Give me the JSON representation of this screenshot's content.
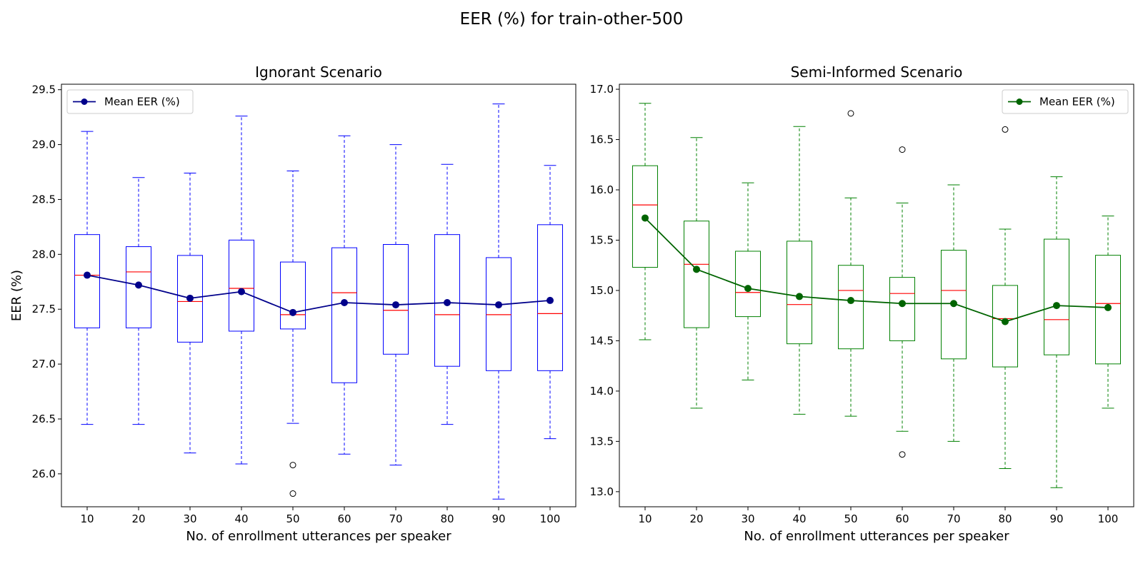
{
  "figure_title": "EER (%) for train-other-500",
  "chart_data": [
    {
      "type": "box",
      "title": "Ignorant Scenario",
      "xlabel": "No. of enrollment utterances per speaker",
      "ylabel": "EER (%)",
      "categories": [
        "10",
        "20",
        "30",
        "40",
        "50",
        "60",
        "70",
        "80",
        "90",
        "100"
      ],
      "ylim": [
        25.7,
        29.55
      ],
      "yticks": [
        "26.0",
        "26.5",
        "27.0",
        "27.5",
        "28.0",
        "28.5",
        "29.0",
        "29.5"
      ],
      "box_color": "#0000ff",
      "median_color": "#ff0000",
      "boxes": [
        {
          "whislo": 26.45,
          "q1": 27.33,
          "med": 27.81,
          "q3": 28.18,
          "whishi": 29.12,
          "fliers": []
        },
        {
          "whislo": 26.45,
          "q1": 27.33,
          "med": 27.84,
          "q3": 28.07,
          "whishi": 28.7,
          "fliers": []
        },
        {
          "whislo": 26.19,
          "q1": 27.2,
          "med": 27.57,
          "q3": 27.99,
          "whishi": 28.74,
          "fliers": []
        },
        {
          "whislo": 26.09,
          "q1": 27.3,
          "med": 27.69,
          "q3": 28.13,
          "whishi": 29.26,
          "fliers": []
        },
        {
          "whislo": 26.46,
          "q1": 27.32,
          "med": 27.45,
          "q3": 27.93,
          "whishi": 28.76,
          "fliers": [
            26.08,
            25.82
          ]
        },
        {
          "whislo": 26.18,
          "q1": 26.83,
          "med": 27.65,
          "q3": 28.06,
          "whishi": 29.08,
          "fliers": []
        },
        {
          "whislo": 26.08,
          "q1": 27.09,
          "med": 27.49,
          "q3": 28.09,
          "whishi": 29.0,
          "fliers": []
        },
        {
          "whislo": 26.45,
          "q1": 26.98,
          "med": 27.45,
          "q3": 28.18,
          "whishi": 28.82,
          "fliers": []
        },
        {
          "whislo": 25.77,
          "q1": 26.94,
          "med": 27.45,
          "q3": 27.97,
          "whishi": 29.37,
          "fliers": []
        },
        {
          "whislo": 26.32,
          "q1": 26.94,
          "med": 27.46,
          "q3": 28.27,
          "whishi": 28.81,
          "fliers": []
        }
      ],
      "mean_series": {
        "name": "Mean EER (%)",
        "color": "#00008b",
        "values": [
          27.81,
          27.72,
          27.6,
          27.66,
          27.47,
          27.56,
          27.54,
          27.56,
          27.54,
          27.58
        ]
      },
      "legend_position": "upper-left"
    },
    {
      "type": "box",
      "title": "Semi-Informed Scenario",
      "xlabel": "No. of enrollment utterances per speaker",
      "ylabel": "",
      "categories": [
        "10",
        "20",
        "30",
        "40",
        "50",
        "60",
        "70",
        "80",
        "90",
        "100"
      ],
      "ylim": [
        12.85,
        17.05
      ],
      "yticks": [
        "13.0",
        "13.5",
        "14.0",
        "14.5",
        "15.0",
        "15.5",
        "16.0",
        "16.5",
        "17.0"
      ],
      "box_color": "#008000",
      "median_color": "#ff0000",
      "boxes": [
        {
          "whislo": 14.51,
          "q1": 15.23,
          "med": 15.85,
          "q3": 16.24,
          "whishi": 16.86,
          "fliers": []
        },
        {
          "whislo": 13.83,
          "q1": 14.63,
          "med": 15.26,
          "q3": 15.69,
          "whishi": 16.52,
          "fliers": []
        },
        {
          "whislo": 14.11,
          "q1": 14.74,
          "med": 14.98,
          "q3": 15.39,
          "whishi": 16.07,
          "fliers": []
        },
        {
          "whislo": 13.77,
          "q1": 14.47,
          "med": 14.86,
          "q3": 15.49,
          "whishi": 16.63,
          "fliers": []
        },
        {
          "whislo": 13.75,
          "q1": 14.42,
          "med": 15.0,
          "q3": 15.25,
          "whishi": 15.92,
          "fliers": [
            16.76
          ]
        },
        {
          "whislo": 13.6,
          "q1": 14.5,
          "med": 14.97,
          "q3": 15.13,
          "whishi": 15.87,
          "fliers": [
            16.4,
            13.37
          ]
        },
        {
          "whislo": 13.5,
          "q1": 14.32,
          "med": 15.0,
          "q3": 15.4,
          "whishi": 16.05,
          "fliers": []
        },
        {
          "whislo": 13.23,
          "q1": 14.24,
          "med": 14.72,
          "q3": 15.05,
          "whishi": 15.61,
          "fliers": [
            16.6
          ]
        },
        {
          "whislo": 13.04,
          "q1": 14.36,
          "med": 14.71,
          "q3": 15.51,
          "whishi": 16.13,
          "fliers": []
        },
        {
          "whislo": 13.83,
          "q1": 14.27,
          "med": 14.87,
          "q3": 15.35,
          "whishi": 15.74,
          "fliers": []
        }
      ],
      "mean_series": {
        "name": "Mean EER (%)",
        "color": "#006400",
        "values": [
          15.72,
          15.21,
          15.02,
          14.94,
          14.9,
          14.87,
          14.87,
          14.69,
          14.85,
          14.83
        ]
      },
      "legend_position": "upper-right"
    }
  ]
}
